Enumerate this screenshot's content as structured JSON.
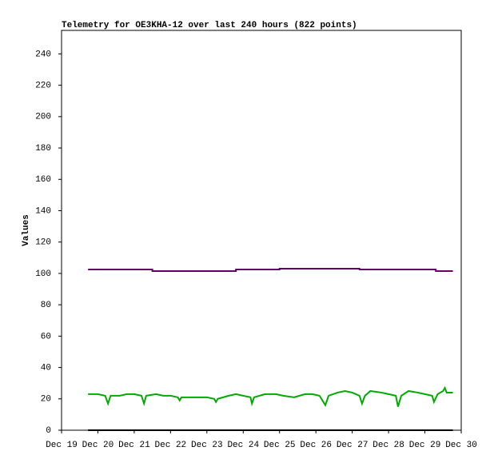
{
  "chart_data": {
    "type": "line",
    "title": "Telemetry for OE3KHA-12 over last 240 hours (822 points)",
    "y_label": "Values",
    "xlim": [
      19,
      30
    ],
    "xticks": [
      {
        "value": 19,
        "label": "Dec 19"
      },
      {
        "value": 20,
        "label": "Dec 20"
      },
      {
        "value": 21,
        "label": "Dec 21"
      },
      {
        "value": 22,
        "label": "Dec 22"
      },
      {
        "value": 23,
        "label": "Dec 23"
      },
      {
        "value": 24,
        "label": "Dec 24"
      },
      {
        "value": 25,
        "label": "Dec 25"
      },
      {
        "value": 26,
        "label": "Dec 26"
      },
      {
        "value": 27,
        "label": "Dec 27"
      },
      {
        "value": 28,
        "label": "Dec 28"
      },
      {
        "value": 29,
        "label": "Dec 29"
      },
      {
        "value": 30,
        "label": "Dec 30"
      }
    ],
    "ylim": [
      0,
      255
    ],
    "yticks": [
      0,
      20,
      40,
      60,
      80,
      100,
      120,
      140,
      160,
      180,
      200,
      220,
      240
    ],
    "grid": false,
    "series": [
      {
        "color": "#660066",
        "x": [
          19.73,
          21.5,
          21.5,
          23.8,
          23.8,
          25.0,
          25.0,
          27.2,
          27.2,
          29.3,
          29.3,
          29.77
        ],
        "values": [
          102.5,
          102.5,
          101.5,
          101.5,
          102.5,
          102.5,
          103,
          103,
          102.5,
          102.5,
          101.5,
          101.5
        ]
      },
      {
        "color": "#00aa00",
        "x": [
          19.73,
          20.0,
          20.2,
          20.28,
          20.35,
          20.6,
          20.8,
          21.0,
          21.2,
          21.27,
          21.33,
          21.6,
          21.8,
          22.0,
          22.2,
          22.25,
          22.3,
          22.5,
          22.8,
          23.0,
          23.2,
          23.25,
          23.3,
          23.6,
          23.8,
          24.0,
          24.2,
          24.24,
          24.3,
          24.6,
          24.9,
          25.1,
          25.4,
          25.7,
          25.9,
          26.1,
          26.26,
          26.35,
          26.6,
          26.8,
          27.0,
          27.2,
          27.27,
          27.35,
          27.5,
          27.8,
          28.0,
          28.2,
          28.26,
          28.35,
          28.55,
          28.8,
          29.0,
          29.2,
          29.25,
          29.35,
          29.5,
          29.55,
          29.6,
          29.77
        ],
        "values": [
          23,
          23,
          22,
          17,
          22,
          22,
          23,
          23,
          22,
          17,
          22,
          23,
          22,
          22,
          21,
          19,
          21,
          21,
          21,
          21,
          20,
          18,
          20,
          22,
          23,
          22,
          21,
          17,
          21,
          23,
          23,
          22,
          21,
          23,
          23,
          22,
          16,
          22,
          24,
          25,
          24,
          22,
          17,
          22,
          25,
          24,
          23,
          22,
          15,
          22,
          25,
          24,
          23,
          22,
          18,
          23,
          25,
          27,
          24,
          24
        ]
      },
      {
        "color": "#000000",
        "x": [
          19.73,
          29.77
        ],
        "values": [
          0,
          0
        ]
      }
    ]
  }
}
